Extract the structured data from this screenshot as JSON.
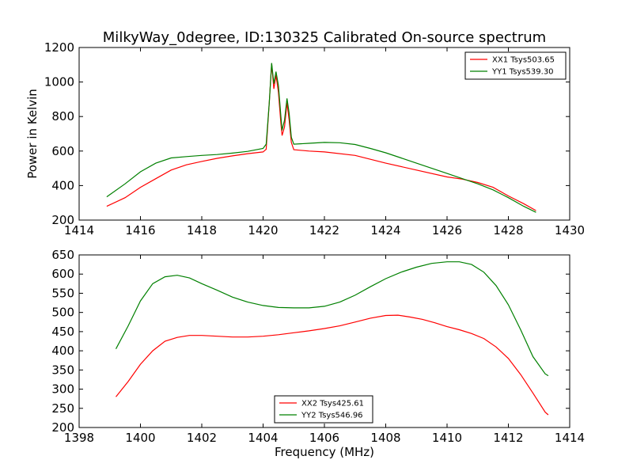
{
  "figure": {
    "title": "MilkyWay_0degree, ID:130325 Calibrated On-source spectrum"
  },
  "chart_data": [
    {
      "type": "line",
      "ylabel": "Power in Kelvin",
      "xlabel": "",
      "xlim": [
        1414,
        1430
      ],
      "ylim": [
        200,
        1200
      ],
      "xticks": [
        1414,
        1416,
        1418,
        1420,
        1422,
        1424,
        1426,
        1428,
        1430
      ],
      "yticks": [
        200,
        400,
        600,
        800,
        1000,
        1200
      ],
      "legend_position": "top-right",
      "series": [
        {
          "name": "XX1 Tsys503.65",
          "color": "#ff0000",
          "points": [
            [
              1414.9,
              280
            ],
            [
              1415.5,
              330
            ],
            [
              1416,
              390
            ],
            [
              1416.5,
              440
            ],
            [
              1417,
              490
            ],
            [
              1417.5,
              520
            ],
            [
              1418,
              540
            ],
            [
              1418.5,
              558
            ],
            [
              1419,
              572
            ],
            [
              1419.5,
              585
            ],
            [
              1420,
              595
            ],
            [
              1420.1,
              610
            ],
            [
              1420.2,
              880
            ],
            [
              1420.28,
              1105
            ],
            [
              1420.35,
              960
            ],
            [
              1420.42,
              1040
            ],
            [
              1420.5,
              940
            ],
            [
              1420.58,
              760
            ],
            [
              1420.62,
              690
            ],
            [
              1420.7,
              740
            ],
            [
              1420.78,
              880
            ],
            [
              1420.85,
              780
            ],
            [
              1420.92,
              650
            ],
            [
              1421,
              608
            ],
            [
              1421.5,
              600
            ],
            [
              1422,
              595
            ],
            [
              1423,
              575
            ],
            [
              1424,
              530
            ],
            [
              1425,
              490
            ],
            [
              1426,
              450
            ],
            [
              1426.5,
              437
            ],
            [
              1427,
              418
            ],
            [
              1427.5,
              390
            ],
            [
              1428,
              340
            ],
            [
              1428.5,
              295
            ],
            [
              1428.9,
              255
            ]
          ]
        },
        {
          "name": "YY1 Tsys539.30",
          "color": "#008000",
          "points": [
            [
              1414.9,
              335
            ],
            [
              1415.5,
              410
            ],
            [
              1416,
              480
            ],
            [
              1416.5,
              530
            ],
            [
              1417,
              560
            ],
            [
              1417.5,
              568
            ],
            [
              1418,
              575
            ],
            [
              1418.5,
              580
            ],
            [
              1419,
              588
            ],
            [
              1419.5,
              598
            ],
            [
              1420,
              615
            ],
            [
              1420.1,
              640
            ],
            [
              1420.2,
              880
            ],
            [
              1420.28,
              1110
            ],
            [
              1420.35,
              990
            ],
            [
              1420.42,
              1060
            ],
            [
              1420.5,
              980
            ],
            [
              1420.58,
              800
            ],
            [
              1420.62,
              720
            ],
            [
              1420.7,
              780
            ],
            [
              1420.78,
              905
            ],
            [
              1420.85,
              820
            ],
            [
              1420.92,
              680
            ],
            [
              1421,
              640
            ],
            [
              1421.5,
              645
            ],
            [
              1422,
              650
            ],
            [
              1422.5,
              648
            ],
            [
              1423,
              638
            ],
            [
              1423.5,
              615
            ],
            [
              1424,
              590
            ],
            [
              1424.5,
              560
            ],
            [
              1425,
              530
            ],
            [
              1425.5,
              500
            ],
            [
              1426,
              470
            ],
            [
              1426.5,
              440
            ],
            [
              1427,
              410
            ],
            [
              1427.5,
              375
            ],
            [
              1428,
              330
            ],
            [
              1428.5,
              280
            ],
            [
              1428.9,
              245
            ]
          ]
        }
      ]
    },
    {
      "type": "line",
      "ylabel": "",
      "xlabel": "Frequency (MHz)",
      "xlim": [
        1398,
        1414
      ],
      "ylim": [
        200,
        650
      ],
      "xticks": [
        1398,
        1400,
        1402,
        1404,
        1406,
        1408,
        1410,
        1412,
        1414
      ],
      "yticks": [
        200,
        250,
        300,
        350,
        400,
        450,
        500,
        550,
        600,
        650
      ],
      "legend_position": "bottom-center",
      "series": [
        {
          "name": "XX2 Tsys425.61",
          "color": "#ff0000",
          "points": [
            [
              1399.2,
              280
            ],
            [
              1399.6,
              320
            ],
            [
              1400,
              365
            ],
            [
              1400.4,
              400
            ],
            [
              1400.8,
              425
            ],
            [
              1401.2,
              435
            ],
            [
              1401.6,
              440
            ],
            [
              1402,
              440
            ],
            [
              1402.5,
              438
            ],
            [
              1403,
              436
            ],
            [
              1403.5,
              436
            ],
            [
              1404,
              438
            ],
            [
              1404.5,
              442
            ],
            [
              1405,
              447
            ],
            [
              1405.5,
              452
            ],
            [
              1406,
              458
            ],
            [
              1406.5,
              465
            ],
            [
              1407,
              475
            ],
            [
              1407.5,
              485
            ],
            [
              1408,
              492
            ],
            [
              1408.4,
              493
            ],
            [
              1408.8,
              488
            ],
            [
              1409.2,
              482
            ],
            [
              1409.6,
              473
            ],
            [
              1410,
              463
            ],
            [
              1410.4,
              455
            ],
            [
              1410.8,
              445
            ],
            [
              1411.2,
              432
            ],
            [
              1411.6,
              410
            ],
            [
              1412,
              380
            ],
            [
              1412.4,
              338
            ],
            [
              1412.8,
              290
            ],
            [
              1413.2,
              240
            ],
            [
              1413.3,
              233
            ]
          ]
        },
        {
          "name": "YY2 Tsys546.96",
          "color": "#008000",
          "points": [
            [
              1399.2,
              405
            ],
            [
              1399.6,
              465
            ],
            [
              1400,
              530
            ],
            [
              1400.4,
              575
            ],
            [
              1400.8,
              593
            ],
            [
              1401.2,
              597
            ],
            [
              1401.6,
              590
            ],
            [
              1402,
              575
            ],
            [
              1402.5,
              558
            ],
            [
              1403,
              540
            ],
            [
              1403.5,
              527
            ],
            [
              1404,
              518
            ],
            [
              1404.5,
              513
            ],
            [
              1405,
              512
            ],
            [
              1405.5,
              512
            ],
            [
              1406,
              516
            ],
            [
              1406.5,
              527
            ],
            [
              1407,
              545
            ],
            [
              1407.5,
              567
            ],
            [
              1408,
              588
            ],
            [
              1408.5,
              605
            ],
            [
              1409,
              618
            ],
            [
              1409.5,
              628
            ],
            [
              1410,
              632
            ],
            [
              1410.4,
              632
            ],
            [
              1410.8,
              625
            ],
            [
              1411.2,
              605
            ],
            [
              1411.6,
              570
            ],
            [
              1412,
              520
            ],
            [
              1412.4,
              455
            ],
            [
              1412.8,
              385
            ],
            [
              1413.2,
              340
            ],
            [
              1413.3,
              335
            ]
          ]
        }
      ]
    }
  ]
}
